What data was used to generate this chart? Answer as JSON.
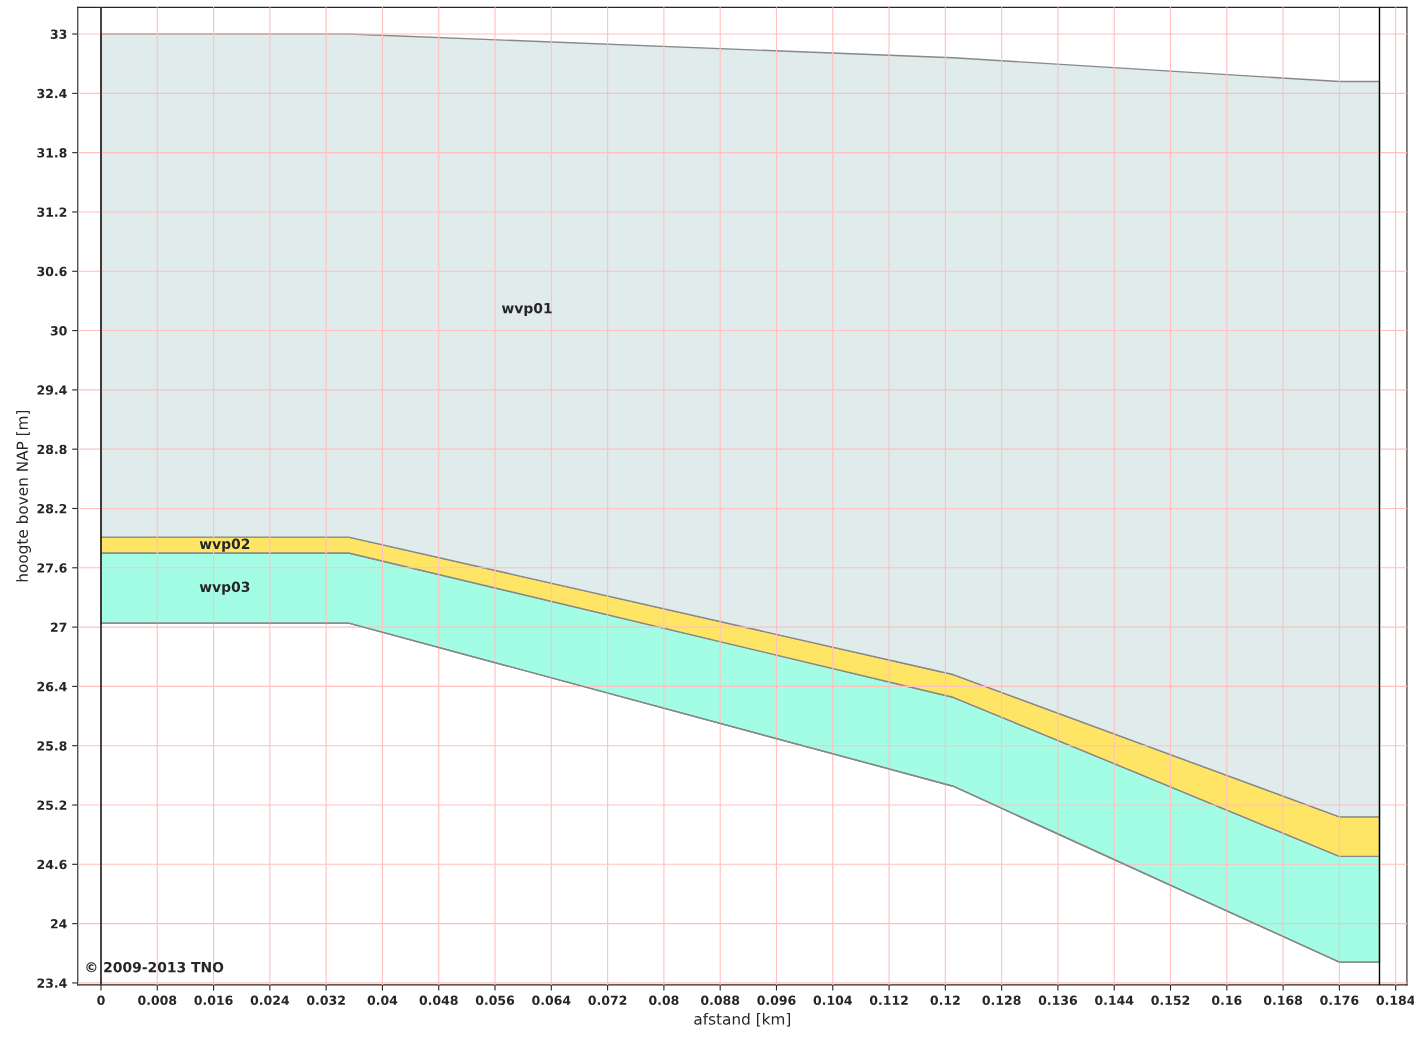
{
  "chart_data": {
    "type": "area",
    "xlabel": "afstand [km]",
    "ylabel": "hoogte boven NAP [m]",
    "x": [
      0,
      0.0352,
      0.1211,
      0.176,
      0.1817
    ],
    "series": [
      {
        "type": "line",
        "color": "#888888",
        "values": [
          27.04,
          27.04,
          25.39,
          23.61,
          23.61
        ]
      },
      {
        "name": "wvp03",
        "color": "#a3fde5",
        "values": [
          27.75,
          27.75,
          26.29,
          24.68,
          24.68
        ]
      },
      {
        "name": "wvp02",
        "color": "#ffe566",
        "values": [
          27.91,
          27.91,
          26.52,
          25.08,
          25.08
        ]
      },
      {
        "name": "wvp01",
        "color": "#e0ebeb",
        "values": [
          33.0,
          33.0,
          32.76,
          32.52,
          32.52
        ]
      }
    ],
    "xlim": [
      -0.0033,
      0.1856
    ],
    "ylim": [
      23.38,
      33.27
    ],
    "xticks": [
      0,
      0.008,
      0.016,
      0.024,
      0.032,
      0.04,
      0.048,
      0.056,
      0.064,
      0.072,
      0.08,
      0.088,
      0.096,
      0.104,
      0.112,
      0.12,
      0.128,
      0.136,
      0.144,
      0.152,
      0.16,
      0.168,
      0.176,
      0.184
    ],
    "yticks": [
      23.4,
      24,
      24.6,
      25.2,
      25.8,
      26.4,
      27,
      27.6,
      28.2,
      28.8,
      29.4,
      30,
      30.6,
      31.2,
      31.8,
      32.4,
      33
    ],
    "grid": true,
    "ref_lines": [
      {
        "axis": "x",
        "value": 0,
        "color": "#000000"
      },
      {
        "axis": "x",
        "value": 0.1817,
        "color": "#000000"
      }
    ],
    "annotations": [
      "© 2009-2013 TNO"
    ]
  }
}
